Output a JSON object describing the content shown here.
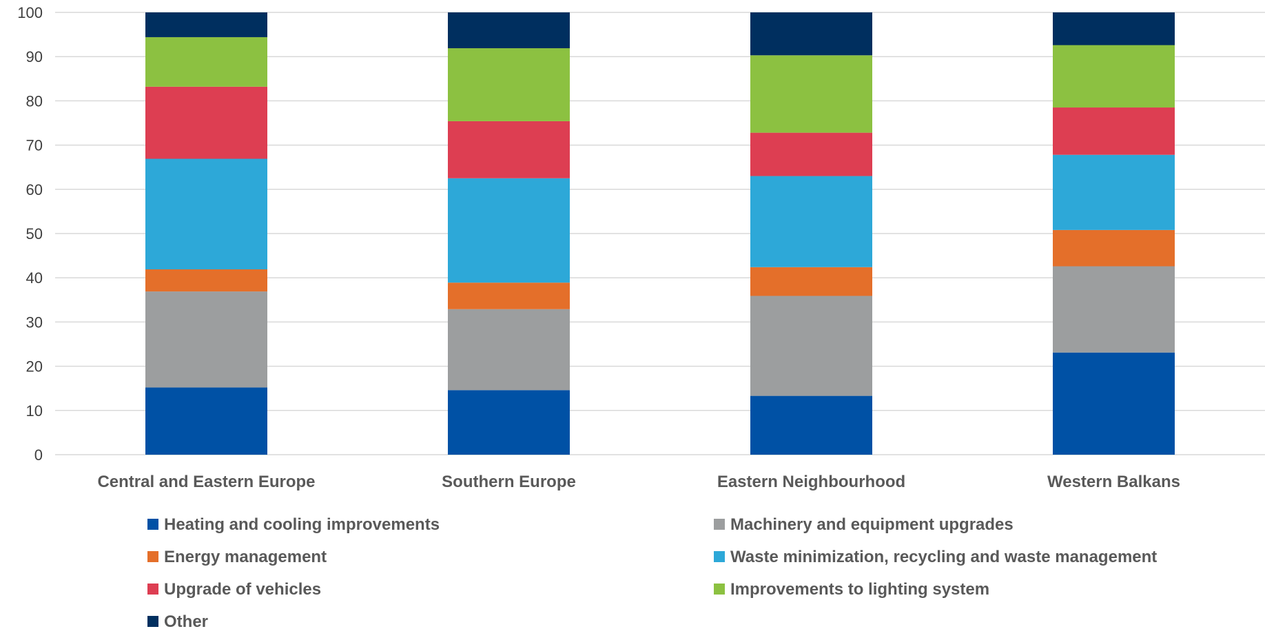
{
  "chart_data": {
    "type": "bar",
    "stacked": true,
    "title": "",
    "xlabel": "",
    "ylabel": "",
    "ylim": [
      0,
      100
    ],
    "yticks": [
      0,
      10,
      20,
      30,
      40,
      50,
      60,
      70,
      80,
      90,
      100
    ],
    "grid": true,
    "legend_position": "bottom",
    "categories": [
      "Central and Eastern Europe",
      "Southern Europe",
      "Eastern Neighbourhood",
      "Western Balkans"
    ],
    "series": [
      {
        "name": "Heating and cooling improvements",
        "color": "#0051A5",
        "values": [
          15.2,
          14.6,
          13.3,
          23.1
        ]
      },
      {
        "name": "Machinery and equipment upgrades",
        "color": "#9C9E9F",
        "values": [
          21.7,
          18.3,
          22.6,
          19.5
        ]
      },
      {
        "name": "Energy management",
        "color": "#E46F2A",
        "values": [
          5.0,
          6.0,
          6.5,
          8.2
        ]
      },
      {
        "name": "Waste minimization, recycling and waste management",
        "color": "#2DA8D8",
        "values": [
          25.0,
          23.6,
          20.6,
          17.0
        ]
      },
      {
        "name": "Upgrade of vehicles",
        "color": "#DD3E52",
        "values": [
          16.3,
          12.9,
          9.8,
          10.7
        ]
      },
      {
        "name": "Improvements to lighting system",
        "color": "#8CC141",
        "values": [
          11.2,
          16.5,
          17.5,
          14.1
        ]
      },
      {
        "name": "Other",
        "color": "#002F5F",
        "values": [
          5.6,
          8.1,
          9.7,
          7.4
        ]
      }
    ]
  }
}
